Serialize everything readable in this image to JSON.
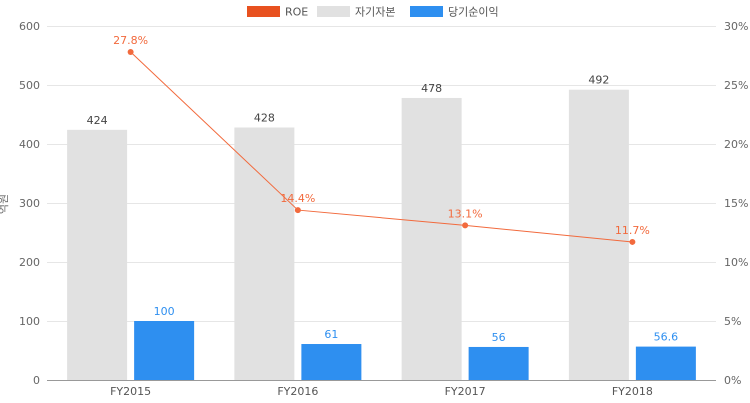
{
  "chart_data": {
    "type": "bar",
    "categories": [
      "FY2015",
      "FY2016",
      "FY2017",
      "FY2018"
    ],
    "ylabel": "억원",
    "ylim": [
      0,
      600
    ],
    "yticks": [
      0,
      100,
      200,
      300,
      400,
      500,
      600
    ],
    "y2lim": [
      0,
      30
    ],
    "y2ticks": [
      "0%",
      "5%",
      "10%",
      "15%",
      "20%",
      "25%",
      "30%"
    ],
    "grid": true,
    "legend_position": "top",
    "series": [
      {
        "name": "자기자본",
        "type": "bar",
        "axis": "left",
        "color": "#e1e1e1",
        "label_color": "#444444",
        "values": [
          424,
          428,
          478,
          492
        ],
        "labels": [
          "424",
          "428",
          "478",
          "492"
        ]
      },
      {
        "name": "당기순이익",
        "type": "bar",
        "axis": "left",
        "color": "#2e8ff0",
        "label_color": "#2e8ff0",
        "values": [
          100,
          61,
          56,
          56.6
        ],
        "labels": [
          "100",
          "61",
          "56",
          "56.6"
        ]
      },
      {
        "name": "ROE",
        "type": "line",
        "axis": "right",
        "color": "#f26a3d",
        "legend_color": "#e8511f",
        "label_color": "#f26a3d",
        "values": [
          27.8,
          14.4,
          13.1,
          11.7
        ],
        "labels": [
          "27.8%",
          "14.4%",
          "13.1%",
          "11.7%"
        ]
      }
    ],
    "legend_order": [
      "ROE",
      "자기자본",
      "당기순이익"
    ]
  }
}
